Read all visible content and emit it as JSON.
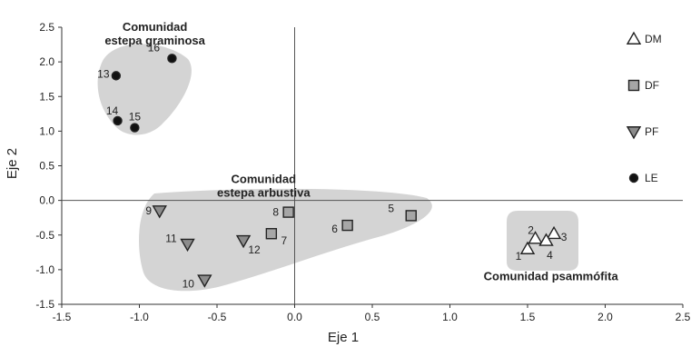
{
  "chart_data": {
    "type": "scatter",
    "xlabel": "Eje 1",
    "ylabel": "Eje 2",
    "xlim": [
      -1.5,
      2.5
    ],
    "ylim": [
      -1.5,
      2.5
    ],
    "xticks": [
      "-1.5",
      "-1.0",
      "-0.5",
      "0.0",
      "0.5",
      "1.0",
      "1.5",
      "2.0",
      "2.5"
    ],
    "yticks": [
      "2.5",
      "2.0",
      "1.5",
      "1.0",
      "0.5",
      "0.0",
      "-0.5",
      "-1.0",
      "-1.5"
    ],
    "legend_position": "right",
    "series": [
      {
        "name": "DM",
        "marker": "triangle-up-open",
        "color": "#ffffff",
        "points": [
          {
            "label": "1",
            "x": 1.5,
            "y": -0.7
          },
          {
            "label": "2",
            "x": 1.55,
            "y": -0.55
          },
          {
            "label": "3",
            "x": 1.67,
            "y": -0.48
          },
          {
            "label": "4",
            "x": 1.62,
            "y": -0.58
          }
        ]
      },
      {
        "name": "DF",
        "marker": "square",
        "color": "#a6a6a6",
        "points": [
          {
            "label": "5",
            "x": 0.75,
            "y": -0.22
          },
          {
            "label": "6",
            "x": 0.34,
            "y": -0.36
          },
          {
            "label": "7",
            "x": -0.15,
            "y": -0.48
          },
          {
            "label": "8",
            "x": -0.04,
            "y": -0.17
          }
        ]
      },
      {
        "name": "PF",
        "marker": "triangle-down",
        "color": "#8c8c8c",
        "points": [
          {
            "label": "9",
            "x": -0.87,
            "y": -0.15
          },
          {
            "label": "10",
            "x": -0.58,
            "y": -1.15
          },
          {
            "label": "11",
            "x": -0.69,
            "y": -0.63
          },
          {
            "label": "12",
            "x": -0.33,
            "y": -0.58
          }
        ]
      },
      {
        "name": "LE",
        "marker": "circle",
        "color": "#111111",
        "points": [
          {
            "label": "13",
            "x": -1.15,
            "y": 1.8
          },
          {
            "label": "14",
            "x": -1.14,
            "y": 1.15
          },
          {
            "label": "15",
            "x": -1.03,
            "y": 1.05
          },
          {
            "label": "16",
            "x": -0.79,
            "y": 2.05
          }
        ]
      }
    ],
    "groups": [
      {
        "label_lines": [
          "Comunidad",
          "estepa graminosa"
        ],
        "label_anchor": [
          -0.9,
          2.45
        ]
      },
      {
        "label_lines": [
          "Comunidad",
          "estepa arbustiva"
        ],
        "label_anchor": [
          -0.2,
          0.25
        ]
      },
      {
        "label_lines": [
          "Comunidad psammófita"
        ],
        "label_anchor": [
          1.65,
          -1.15
        ]
      }
    ],
    "group_fill": "#d4d4d4"
  }
}
